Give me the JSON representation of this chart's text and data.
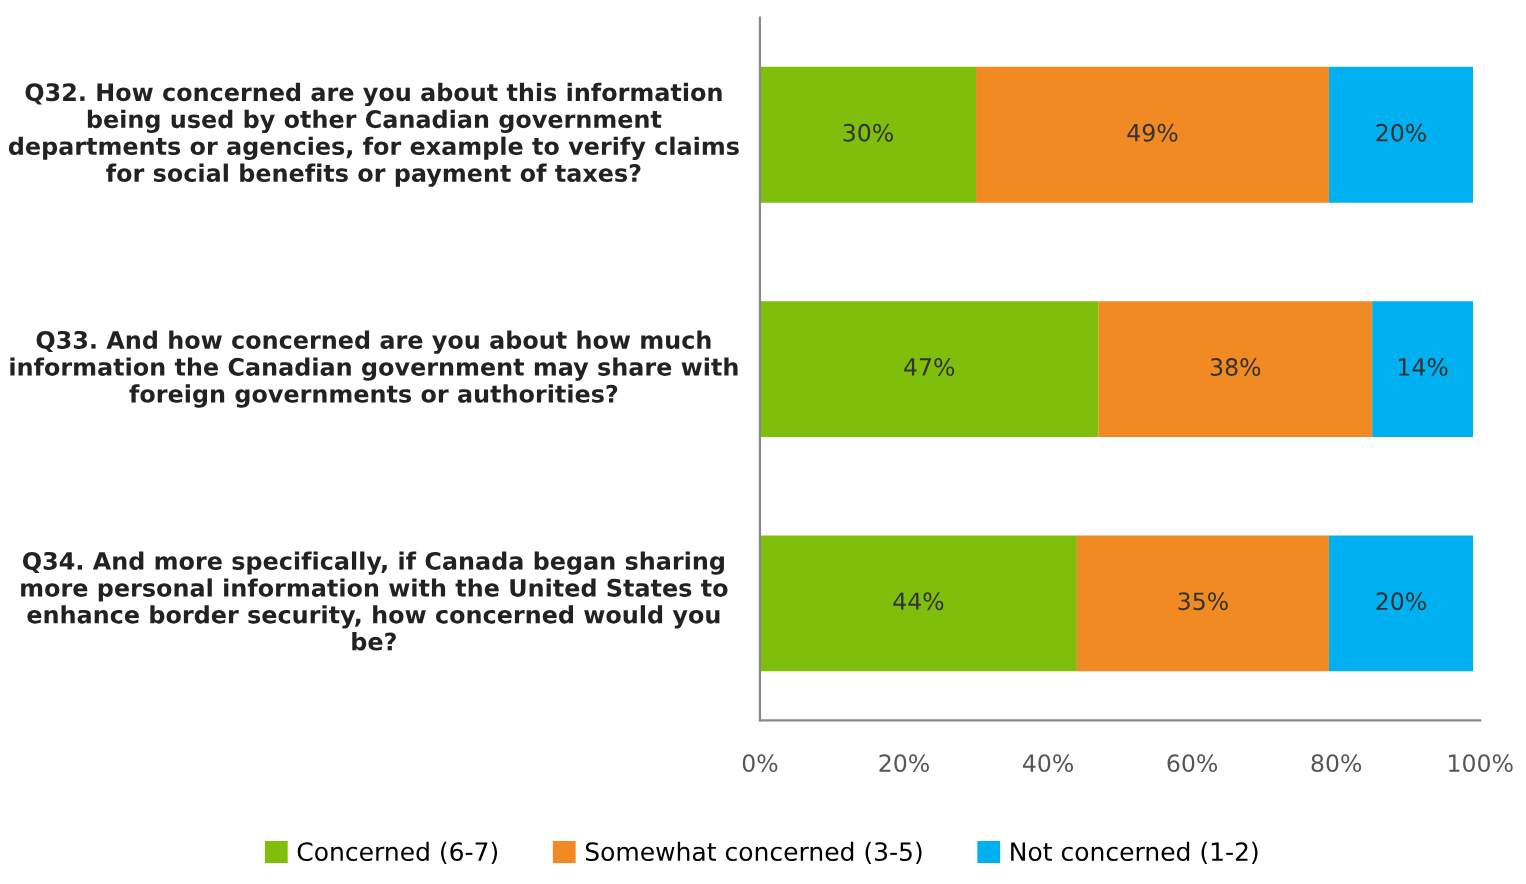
{
  "chart_data": {
    "type": "bar",
    "orientation": "horizontal",
    "stacked": true,
    "categories": [
      "Q32. How concerned are you about this information being used by other Canadian government departments or agencies, for example to verify claims for social benefits or payment of taxes?",
      "Q33. And how concerned are you about how much information the Canadian government may share with foreign governments or authorities?",
      "Q34. And more specifically, if Canada began sharing more personal information with the United States to enhance border security, how concerned would you be?"
    ],
    "series": [
      {
        "name": "Concerned (6-7)",
        "color": "#7fbf0b",
        "values": [
          30,
          47,
          44
        ],
        "value_labels": [
          "30%",
          "47%",
          "44%"
        ]
      },
      {
        "name": "Somewhat concerned (3-5)",
        "color": "#f28a24",
        "values": [
          49,
          38,
          35
        ],
        "value_labels": [
          "49%",
          "38%",
          "35%"
        ]
      },
      {
        "name": "Not concerned (1-2)",
        "color": "#00b0f0",
        "values": [
          20,
          14,
          20
        ],
        "value_labels": [
          "20%",
          "14%",
          "20%"
        ]
      }
    ],
    "xlim": [
      0,
      100
    ],
    "xticks": [
      {
        "value": 0,
        "label": "0%"
      },
      {
        "value": 20,
        "label": "20%"
      },
      {
        "value": 40,
        "label": "40%"
      },
      {
        "value": 60,
        "label": "60%"
      },
      {
        "value": 80,
        "label": "80%"
      },
      {
        "value": 100,
        "label": "100%"
      }
    ],
    "legend": "bottom",
    "grid": false
  }
}
